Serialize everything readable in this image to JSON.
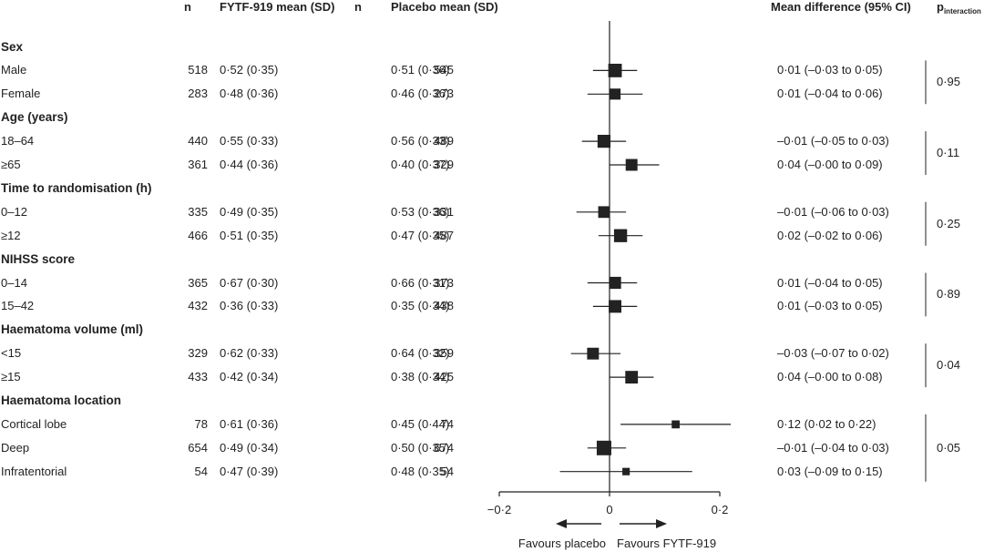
{
  "header": {
    "n_left": "n",
    "treat": "FYTF-919 mean (SD)",
    "n_right": "n",
    "placebo": "Placebo mean (SD)",
    "diff": "Mean difference (95% CI)",
    "p_main": "p",
    "p_sub": "interaction"
  },
  "groups": [
    {
      "label": "Sex",
      "p": "0·95",
      "rows": [
        {
          "label": "Male",
          "n1": "518",
          "m1": "0·52 (0·35)",
          "n2": "545",
          "m2": "0·51 (0·36)",
          "ci": "0·01 (–0·03 to 0·05)"
        },
        {
          "label": "Female",
          "n1": "283",
          "m1": "0·48 (0·36)",
          "n2": "273",
          "m2": "0·46 (0·36)",
          "ci": "0·01 (–0·04 to 0·06)"
        }
      ]
    },
    {
      "label": "Age (years)",
      "p": "0·11",
      "rows": [
        {
          "label": "18–64",
          "n1": "440",
          "m1": "0·55 (0·33)",
          "n2": "489",
          "m2": "0·56 (0·33)",
          "ci": "–0·01 (–0·05 to 0·03)"
        },
        {
          "label": "≥65",
          "n1": "361",
          "m1": "0·44 (0·36)",
          "n2": "329",
          "m2": "0·40 (0·37)",
          "ci": "0·04 (–0·00 to 0·09)"
        }
      ]
    },
    {
      "label": "Time to randomisation (h)",
      "p": "0·25",
      "rows": [
        {
          "label": "0–12",
          "n1": "335",
          "m1": "0·49 (0·35)",
          "n2": "331",
          "m2": "0·53 (0·36)",
          "ci": "–0·01 (–0·06 to 0·03)"
        },
        {
          "label": "≥12",
          "n1": "466",
          "m1": "0·51 (0·35)",
          "n2": "487",
          "m2": "0·47 (0·35)",
          "ci": "0·02 (–0·02 to 0·06)"
        }
      ]
    },
    {
      "label": "NIHSS score",
      "p": "0·89",
      "rows": [
        {
          "label": "0–14",
          "n1": "365",
          "m1": "0·67 (0·30)",
          "n2": "373",
          "m2": "0·66 (0·31)",
          "ci": "0·01 (–0·04 to 0·05)"
        },
        {
          "label": "15–42",
          "n1": "432",
          "m1": "0·36 (0·33)",
          "n2": "438",
          "m2": "0·35 (0·34)",
          "ci": "0·01 (–0·03 to 0·05)"
        }
      ]
    },
    {
      "label": "Haematoma volume (ml)",
      "p": "0·04",
      "rows": [
        {
          "label": "<15",
          "n1": "329",
          "m1": "0·62 (0·33)",
          "n2": "359",
          "m2": "0·64 (0·32)",
          "ci": "–0·03 (–0·07 to 0·02)"
        },
        {
          "label": "≥15",
          "n1": "433",
          "m1": "0·42 (0·34)",
          "n2": "425",
          "m2": "0·38 (0·34)",
          "ci": "0·04 (–0·00 to 0·08)"
        }
      ]
    },
    {
      "label": "Haematoma location",
      "p": "0·05",
      "rows": [
        {
          "label": "Cortical lobe",
          "n1": "78",
          "m1": "0·61 (0·36)",
          "n2": "74",
          "m2": "0·45 (0·44)",
          "ci": "0·12 (0·02 to 0·22)"
        },
        {
          "label": "Deep",
          "n1": "654",
          "m1": "0·49 (0·34)",
          "n2": "674",
          "m2": "0·50 (0·35)",
          "ci": "–0·01 (–0·04 to 0·03)"
        },
        {
          "label": "Infratentorial",
          "n1": "54",
          "m1": "0·47 (0·39)",
          "n2": "54",
          "m2": "0·48 (0·35)",
          "ci": "0·03 (–0·09 to 0·15)"
        }
      ]
    }
  ],
  "chart_data": {
    "type": "forest",
    "xlim": [
      -0.2,
      0.2
    ],
    "xticks": [
      -0.2,
      0,
      0.2
    ],
    "xtick_labels": [
      "−0·2",
      "0",
      "0·2"
    ],
    "reference_line": 0,
    "favours_left": "Favours placebo",
    "favours_right": "Favours FYTF-919",
    "estimates": [
      {
        "label": "Male",
        "est": 0.01,
        "lo": -0.03,
        "hi": 0.05,
        "n": 1063
      },
      {
        "label": "Female",
        "est": 0.01,
        "lo": -0.04,
        "hi": 0.06,
        "n": 556
      },
      {
        "label": "18–64",
        "est": -0.01,
        "lo": -0.05,
        "hi": 0.03,
        "n": 929
      },
      {
        "label": "≥65",
        "est": 0.04,
        "lo": -0.0,
        "hi": 0.09,
        "n": 690
      },
      {
        "label": "0–12",
        "est": -0.01,
        "lo": -0.06,
        "hi": 0.03,
        "n": 666
      },
      {
        "label": "≥12",
        "est": 0.02,
        "lo": -0.02,
        "hi": 0.06,
        "n": 953
      },
      {
        "label": "0–14",
        "est": 0.01,
        "lo": -0.04,
        "hi": 0.05,
        "n": 738
      },
      {
        "label": "15–42",
        "est": 0.01,
        "lo": -0.03,
        "hi": 0.05,
        "n": 870
      },
      {
        "label": "<15",
        "est": -0.03,
        "lo": -0.07,
        "hi": 0.02,
        "n": 688
      },
      {
        "label": "≥15",
        "est": 0.04,
        "lo": -0.0,
        "hi": 0.08,
        "n": 858
      },
      {
        "label": "Cortical lobe",
        "est": 0.12,
        "lo": 0.02,
        "hi": 0.22,
        "n": 152
      },
      {
        "label": "Deep",
        "est": -0.01,
        "lo": -0.04,
        "hi": 0.03,
        "n": 1328
      },
      {
        "label": "Infratentorial",
        "est": 0.03,
        "lo": -0.09,
        "hi": 0.15,
        "n": 108
      }
    ]
  }
}
